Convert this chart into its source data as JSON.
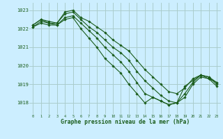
{
  "title": "Graphe pression niveau de la mer (hPa)",
  "background_color": "#cceeff",
  "grid_color": "#aacccc",
  "line_color": "#1a5c1a",
  "x_labels": [
    "0",
    "1",
    "2",
    "3",
    "4",
    "5",
    "6",
    "7",
    "8",
    "9",
    "10",
    "11",
    "12",
    "13",
    "14",
    "15",
    "16",
    "17",
    "18",
    "19",
    "20",
    "21",
    "22",
    "23"
  ],
  "y_ticks": [
    1018,
    1019,
    1020,
    1021,
    1022,
    1023
  ],
  "ylim": [
    1017.4,
    1023.4
  ],
  "xlim": [
    -0.5,
    23.5
  ],
  "series": [
    [
      1022.2,
      1022.5,
      1022.4,
      1022.3,
      1022.9,
      1023.0,
      1022.6,
      1022.4,
      1022.1,
      1021.8,
      1021.4,
      1021.1,
      1020.8,
      1020.3,
      1019.8,
      1019.4,
      1019.0,
      1018.6,
      1018.5,
      1018.8,
      1019.3,
      1019.5,
      1019.4,
      1019.1
    ],
    [
      1022.2,
      1022.5,
      1022.3,
      1022.3,
      1022.8,
      1022.9,
      1022.5,
      1022.1,
      1021.8,
      1021.4,
      1021.0,
      1020.7,
      1020.3,
      1019.7,
      1019.2,
      1018.8,
      1018.4,
      1018.1,
      1018.0,
      1018.3,
      1019.0,
      1019.4,
      1019.3,
      1019.1
    ],
    [
      1022.1,
      1022.4,
      1022.3,
      1022.2,
      1022.6,
      1022.7,
      1022.3,
      1021.9,
      1021.5,
      1021.0,
      1020.6,
      1020.2,
      1019.7,
      1019.1,
      1018.5,
      1018.3,
      1018.1,
      1017.9,
      1018.0,
      1018.5,
      1019.1,
      1019.5,
      1019.4,
      1019.0
    ],
    [
      1022.1,
      1022.3,
      1022.2,
      1022.2,
      1022.5,
      1022.6,
      1022.0,
      1021.5,
      1021.0,
      1020.4,
      1020.0,
      1019.6,
      1019.0,
      1018.5,
      1018.0,
      1018.3,
      1018.1,
      1017.9,
      1018.0,
      1018.9,
      1019.2,
      1019.5,
      1019.3,
      1018.9
    ]
  ]
}
